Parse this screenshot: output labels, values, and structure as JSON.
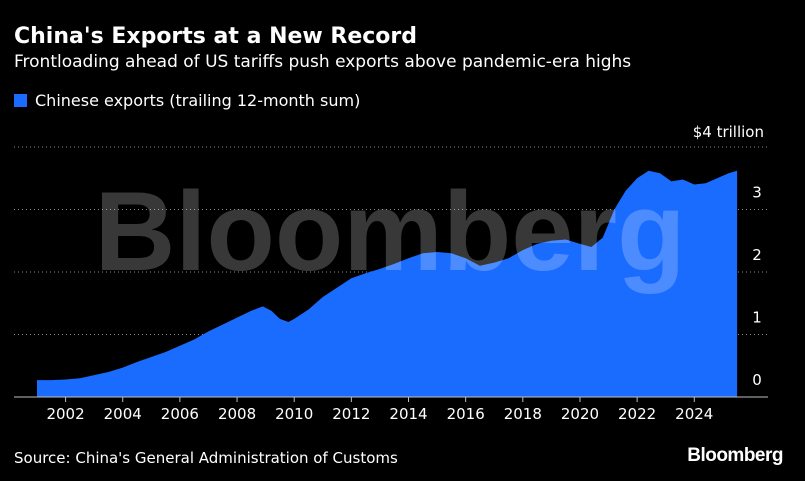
{
  "header": {
    "title": "China's Exports at a New Record",
    "subtitle": "Frontloading ahead of US tariffs push exports above pandemic-era highs"
  },
  "legend": {
    "label": "Chinese exports (trailing 12-month sum)",
    "color": "#1a6cff"
  },
  "footer": {
    "source": "Source: China's General Administration of Customs",
    "logo": "Bloomberg"
  },
  "watermark": "Bloomberg",
  "chart_data": {
    "type": "area",
    "title": "China's Exports at a New Record",
    "subtitle": "Frontloading ahead of US tariffs push exports above pandemic-era highs",
    "xlabel": "",
    "ylabel": "",
    "unit_label": "$4 trillion",
    "ylim": [
      0,
      4
    ],
    "xlim": [
      2001.0,
      2025.6
    ],
    "y_ticks": [
      0,
      1,
      2,
      3,
      4
    ],
    "x_ticks": [
      "2002",
      "2004",
      "2006",
      "2008",
      "2010",
      "2012",
      "2014",
      "2016",
      "2018",
      "2020",
      "2022",
      "2024"
    ],
    "grid": "horizontal dotted",
    "legend_position": "top-left",
    "color": "#1a6cff",
    "series": [
      {
        "name": "Chinese exports (trailing 12-month sum)",
        "x": [
          2001.0,
          2001.5,
          2002.0,
          2002.5,
          2003.0,
          2003.5,
          2004.0,
          2004.5,
          2005.0,
          2005.5,
          2006.0,
          2006.5,
          2007.0,
          2007.5,
          2008.0,
          2008.5,
          2008.9,
          2009.2,
          2009.5,
          2009.8,
          2010.0,
          2010.5,
          2011.0,
          2011.5,
          2012.0,
          2012.5,
          2013.0,
          2013.5,
          2014.0,
          2014.5,
          2015.0,
          2015.5,
          2016.0,
          2016.5,
          2017.0,
          2017.5,
          2018.0,
          2018.5,
          2019.0,
          2019.5,
          2020.0,
          2020.4,
          2020.8,
          2021.2,
          2021.6,
          2022.0,
          2022.4,
          2022.8,
          2023.2,
          2023.6,
          2024.0,
          2024.4,
          2024.8,
          2025.2,
          2025.5
        ],
        "values": [
          0.27,
          0.27,
          0.28,
          0.3,
          0.35,
          0.4,
          0.47,
          0.56,
          0.64,
          0.72,
          0.82,
          0.92,
          1.05,
          1.16,
          1.27,
          1.38,
          1.45,
          1.38,
          1.25,
          1.2,
          1.25,
          1.4,
          1.6,
          1.75,
          1.9,
          1.98,
          2.05,
          2.13,
          2.22,
          2.3,
          2.32,
          2.3,
          2.22,
          2.1,
          2.15,
          2.22,
          2.35,
          2.45,
          2.5,
          2.52,
          2.45,
          2.4,
          2.55,
          3.0,
          3.3,
          3.5,
          3.62,
          3.58,
          3.45,
          3.48,
          3.4,
          3.42,
          3.5,
          3.58,
          3.62
        ]
      }
    ]
  }
}
